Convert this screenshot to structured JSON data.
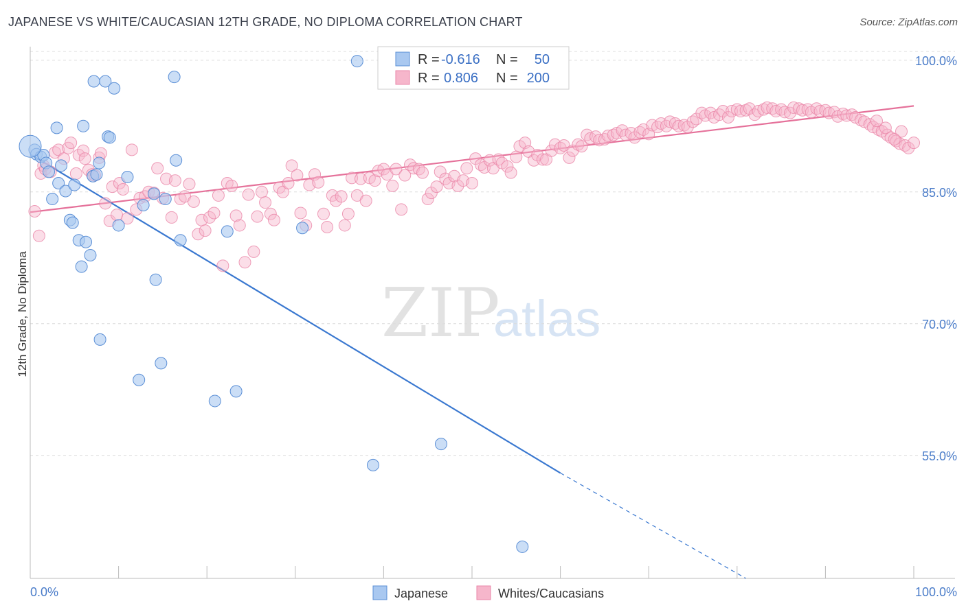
{
  "title": "JAPANESE VS WHITE/CAUCASIAN 12TH GRADE, NO DIPLOMA CORRELATION CHART",
  "source": "Source: ZipAtlas.com",
  "watermark": {
    "zip": "ZIP",
    "atlas": "atlas"
  },
  "legend": {
    "rows": [
      {
        "r_label": "R =",
        "r_value": "-0.616",
        "n_label": "N =",
        "n_value": "50",
        "color": "#a9c8f0"
      },
      {
        "r_label": "R =",
        "r_value": "0.806",
        "n_label": "N =",
        "n_value": "200",
        "color": "#f6b6cb"
      }
    ]
  },
  "chart_data": {
    "type": "scatter",
    "xlabel": "",
    "ylabel": "12th Grade, No Diploma",
    "xlim": [
      0,
      100
    ],
    "ylim": [
      41,
      101
    ],
    "x_tick_labels": [
      "0.0%",
      "100.0%"
    ],
    "y_ticks": [
      100,
      85,
      70,
      55
    ],
    "y_tick_labels": [
      "100.0%",
      "85.0%",
      "70.0%",
      "55.0%"
    ],
    "grid": true,
    "legend_position": "bottom",
    "series": [
      {
        "name": "Japanese",
        "color": "#5b8fd6",
        "fill": "#a9c8f0",
        "trend": {
          "x0": 0,
          "y0": 89.3,
          "x1": 60,
          "y1": 53.0,
          "dash_to_x": 81,
          "dash_to_y": 40.3
        },
        "points": [
          [
            0.5,
            89.8
          ],
          [
            0.7,
            89.3
          ],
          [
            1.2,
            89.0
          ],
          [
            1.5,
            89.2
          ],
          [
            1.8,
            88.3
          ],
          [
            2.1,
            87.3
          ],
          [
            3.0,
            92.3
          ],
          [
            3.2,
            86.0
          ],
          [
            2.5,
            84.2
          ],
          [
            3.5,
            88.0
          ],
          [
            4.0,
            85.1
          ],
          [
            4.5,
            81.8
          ],
          [
            4.8,
            81.5
          ],
          [
            5.0,
            85.8
          ],
          [
            5.5,
            79.5
          ],
          [
            5.8,
            76.5
          ],
          [
            6.0,
            92.5
          ],
          [
            6.3,
            79.3
          ],
          [
            6.8,
            77.8
          ],
          [
            7.1,
            86.8
          ],
          [
            7.2,
            97.6
          ],
          [
            7.5,
            87.0
          ],
          [
            7.8,
            88.3
          ],
          [
            7.9,
            68.2
          ],
          [
            8.5,
            97.6
          ],
          [
            8.8,
            91.3
          ],
          [
            9.0,
            91.2
          ],
          [
            9.5,
            96.8
          ],
          [
            10.0,
            81.2
          ],
          [
            11.0,
            86.7
          ],
          [
            12.3,
            63.6
          ],
          [
            12.8,
            83.5
          ],
          [
            14.0,
            84.8
          ],
          [
            14.2,
            75.0
          ],
          [
            14.8,
            65.5
          ],
          [
            15.3,
            84.2
          ],
          [
            16.3,
            98.1
          ],
          [
            16.5,
            88.6
          ],
          [
            17.0,
            79.5
          ],
          [
            20.9,
            61.2
          ],
          [
            22.3,
            80.5
          ],
          [
            23.3,
            62.3
          ],
          [
            30.8,
            80.9
          ],
          [
            37.0,
            99.9
          ],
          [
            38.8,
            53.9
          ],
          [
            46.5,
            56.3
          ],
          [
            55.7,
            44.6
          ]
        ],
        "big_point": [
          0,
          90.2
        ]
      },
      {
        "name": "Whites/Caucasians",
        "color": "#ea86a8",
        "fill": "#f6b6cb",
        "trend": {
          "x0": 0,
          "y0": 82.7,
          "x1": 100,
          "y1": 94.8
        },
        "points": [
          [
            0.5,
            82.8
          ],
          [
            1.0,
            80.0
          ],
          [
            1.2,
            87.1
          ],
          [
            1.5,
            88.0
          ],
          [
            1.7,
            87.6
          ],
          [
            2.3,
            87.3
          ],
          [
            2.8,
            89.5
          ],
          [
            3.2,
            89.8
          ],
          [
            3.8,
            88.8
          ],
          [
            4.3,
            90.0
          ],
          [
            4.6,
            90.6
          ],
          [
            5.2,
            87.1
          ],
          [
            5.5,
            89.2
          ],
          [
            6.0,
            89.7
          ],
          [
            6.2,
            88.8
          ],
          [
            6.6,
            87.5
          ],
          [
            7.0,
            87.0
          ],
          [
            7.3,
            86.9
          ],
          [
            7.8,
            88.9
          ],
          [
            8.0,
            89.4
          ],
          [
            8.5,
            83.7
          ],
          [
            9.0,
            81.7
          ],
          [
            9.3,
            85.6
          ],
          [
            9.8,
            82.4
          ],
          [
            10.1,
            86.0
          ],
          [
            10.5,
            85.3
          ],
          [
            11.0,
            82.0
          ],
          [
            11.5,
            89.8
          ],
          [
            12.0,
            83.0
          ],
          [
            12.4,
            84.3
          ],
          [
            13.0,
            84.5
          ],
          [
            13.4,
            85.0
          ],
          [
            14.0,
            84.9
          ],
          [
            14.4,
            87.7
          ],
          [
            15.0,
            84.3
          ],
          [
            15.4,
            86.5
          ],
          [
            16.0,
            82.1
          ],
          [
            16.4,
            86.3
          ],
          [
            17.0,
            84.2
          ],
          [
            17.5,
            84.5
          ],
          [
            18.0,
            85.9
          ],
          [
            18.5,
            83.9
          ],
          [
            19.0,
            80.2
          ],
          [
            19.4,
            81.8
          ],
          [
            19.8,
            80.6
          ],
          [
            20.3,
            82.1
          ],
          [
            20.8,
            82.6
          ],
          [
            21.3,
            84.6
          ],
          [
            21.8,
            76.6
          ],
          [
            22.3,
            86.0
          ],
          [
            22.8,
            85.7
          ],
          [
            23.3,
            82.3
          ],
          [
            23.7,
            81.2
          ],
          [
            24.3,
            77.0
          ],
          [
            24.7,
            84.7
          ],
          [
            25.3,
            78.2
          ],
          [
            25.7,
            82.2
          ],
          [
            26.2,
            85.0
          ],
          [
            26.6,
            83.8
          ],
          [
            27.2,
            82.5
          ],
          [
            27.6,
            81.8
          ],
          [
            28.2,
            85.5
          ],
          [
            28.6,
            85.0
          ],
          [
            29.2,
            86.0
          ],
          [
            29.6,
            88.0
          ],
          [
            30.2,
            86.9
          ],
          [
            30.6,
            82.6
          ],
          [
            31.2,
            81.2
          ],
          [
            31.6,
            85.8
          ],
          [
            32.2,
            87.0
          ],
          [
            32.6,
            86.1
          ],
          [
            33.2,
            82.5
          ],
          [
            33.6,
            81.0
          ],
          [
            34.2,
            84.6
          ],
          [
            34.6,
            84.0
          ],
          [
            35.2,
            84.5
          ],
          [
            35.6,
            81.2
          ],
          [
            36.0,
            82.5
          ],
          [
            36.4,
            86.6
          ],
          [
            37.0,
            84.6
          ],
          [
            37.4,
            86.5
          ],
          [
            38.0,
            84.0
          ],
          [
            38.4,
            86.6
          ],
          [
            39.0,
            86.3
          ],
          [
            39.4,
            87.4
          ],
          [
            40.0,
            87.6
          ],
          [
            40.4,
            87.0
          ],
          [
            41.0,
            85.7
          ],
          [
            41.4,
            87.6
          ],
          [
            42.0,
            83.0
          ],
          [
            42.4,
            86.9
          ],
          [
            43.0,
            88.1
          ],
          [
            43.4,
            87.7
          ],
          [
            44.0,
            87.6
          ],
          [
            44.4,
            87.2
          ],
          [
            45.0,
            84.2
          ],
          [
            45.4,
            84.9
          ],
          [
            46.0,
            85.6
          ],
          [
            46.4,
            87.3
          ],
          [
            47.0,
            86.5
          ],
          [
            47.4,
            86.0
          ],
          [
            48.0,
            86.8
          ],
          [
            48.4,
            85.7
          ],
          [
            49.0,
            86.3
          ],
          [
            49.4,
            87.7
          ],
          [
            50.0,
            86.0
          ],
          [
            50.4,
            88.8
          ],
          [
            51.0,
            88.1
          ],
          [
            51.4,
            87.8
          ],
          [
            52.0,
            88.6
          ],
          [
            52.4,
            87.7
          ],
          [
            53.0,
            88.7
          ],
          [
            53.4,
            88.3
          ],
          [
            54.0,
            87.9
          ],
          [
            54.4,
            87.2
          ],
          [
            55.0,
            89.0
          ],
          [
            55.4,
            90.2
          ],
          [
            56.0,
            90.6
          ],
          [
            56.4,
            89.6
          ],
          [
            57.0,
            88.6
          ],
          [
            57.4,
            89.2
          ],
          [
            58.0,
            88.7
          ],
          [
            58.4,
            88.7
          ],
          [
            59.0,
            89.7
          ],
          [
            59.4,
            90.4
          ],
          [
            60.0,
            90.0
          ],
          [
            60.4,
            90.3
          ],
          [
            61.0,
            88.9
          ],
          [
            61.4,
            89.7
          ],
          [
            62.0,
            90.4
          ],
          [
            62.4,
            90.2
          ],
          [
            63.0,
            91.5
          ],
          [
            63.4,
            91.1
          ],
          [
            64.0,
            91.3
          ],
          [
            64.4,
            90.9
          ],
          [
            65.0,
            91.0
          ],
          [
            65.4,
            91.4
          ],
          [
            66.0,
            91.5
          ],
          [
            66.4,
            91.7
          ],
          [
            67.0,
            92.0
          ],
          [
            67.4,
            91.5
          ],
          [
            68.0,
            91.7
          ],
          [
            68.4,
            91.2
          ],
          [
            69.0,
            91.8
          ],
          [
            69.4,
            92.1
          ],
          [
            70.0,
            91.6
          ],
          [
            70.4,
            92.6
          ],
          [
            71.0,
            92.4
          ],
          [
            71.4,
            92.8
          ],
          [
            72.0,
            92.5
          ],
          [
            72.4,
            93.0
          ],
          [
            73.0,
            92.8
          ],
          [
            73.4,
            92.5
          ],
          [
            74.0,
            92.6
          ],
          [
            74.4,
            92.4
          ],
          [
            75.0,
            93.0
          ],
          [
            75.4,
            93.3
          ],
          [
            76.0,
            94.0
          ],
          [
            76.4,
            93.7
          ],
          [
            77.0,
            94.0
          ],
          [
            77.4,
            93.5
          ],
          [
            78.0,
            93.8
          ],
          [
            78.4,
            94.2
          ],
          [
            79.0,
            93.5
          ],
          [
            79.4,
            94.2
          ],
          [
            80.0,
            94.4
          ],
          [
            80.4,
            94.2
          ],
          [
            81.0,
            94.3
          ],
          [
            81.4,
            94.5
          ],
          [
            82.0,
            93.8
          ],
          [
            82.4,
            94.2
          ],
          [
            83.0,
            94.4
          ],
          [
            83.4,
            94.6
          ],
          [
            84.0,
            94.5
          ],
          [
            84.4,
            94.2
          ],
          [
            85.0,
            94.4
          ],
          [
            85.4,
            94.1
          ],
          [
            86.0,
            94.0
          ],
          [
            86.4,
            94.6
          ],
          [
            87.0,
            94.5
          ],
          [
            87.4,
            94.3
          ],
          [
            88.0,
            94.4
          ],
          [
            88.4,
            94.1
          ],
          [
            89.0,
            94.5
          ],
          [
            89.4,
            94.2
          ],
          [
            90.0,
            94.3
          ],
          [
            90.4,
            94.0
          ],
          [
            91.0,
            94.1
          ],
          [
            91.4,
            93.6
          ],
          [
            92.0,
            93.9
          ],
          [
            92.4,
            93.7
          ],
          [
            93.0,
            93.8
          ],
          [
            93.4,
            93.5
          ],
          [
            94.0,
            93.2
          ],
          [
            94.4,
            93.0
          ],
          [
            95.0,
            92.7
          ],
          [
            95.4,
            92.4
          ],
          [
            96.0,
            92.1
          ],
          [
            96.4,
            91.9
          ],
          [
            97.0,
            91.5
          ],
          [
            97.4,
            91.2
          ],
          [
            98.0,
            90.8
          ],
          [
            98.4,
            90.5
          ],
          [
            99.0,
            90.3
          ],
          [
            99.4,
            90.0
          ],
          [
            100.0,
            90.6
          ],
          [
            98.6,
            91.9
          ],
          [
            97.8,
            91.0
          ],
          [
            96.8,
            92.3
          ],
          [
            95.8,
            93.1
          ]
        ]
      }
    ]
  }
}
